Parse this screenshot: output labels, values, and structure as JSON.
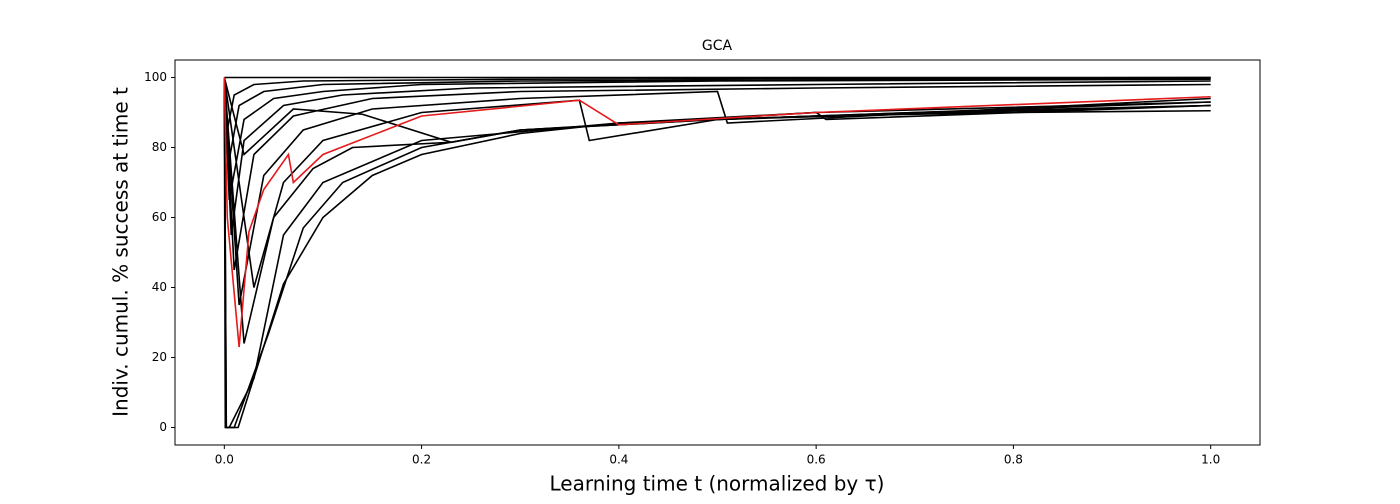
{
  "chart_data": {
    "type": "line",
    "title": "GCA",
    "x_label": "Learning time t (normalized by  τ)",
    "y_label": "Indiv. cumul. % success at time t",
    "xlim": [
      -0.05,
      1.05
    ],
    "ylim": [
      -5,
      105
    ],
    "xticks": [
      {
        "value": 0,
        "label": "0.0"
      },
      0.2,
      0.4,
      0.6,
      0.8,
      {
        "value": 1,
        "label": "1.0"
      }
    ],
    "yticks": [
      0,
      20,
      40,
      60,
      80,
      100
    ],
    "series": [
      {
        "color": "#000000",
        "x": [
          0,
          0.002,
          0.014,
          0.06,
          0.1,
          0.15,
          0.2,
          0.3,
          0.4,
          0.6,
          0.8,
          1.0
        ],
        "values": [
          100,
          0,
          0,
          41,
          60,
          72,
          78,
          84,
          87,
          89,
          90,
          90.5
        ]
      },
      {
        "color": "#000000",
        "x": [
          0,
          0.002,
          0.01,
          0.045,
          0.08,
          0.12,
          0.2,
          0.3,
          0.5,
          0.7,
          1.0
        ],
        "values": [
          100,
          0,
          0,
          27,
          57,
          70,
          80,
          85,
          88,
          90,
          92
        ]
      },
      {
        "color": "#000000",
        "x": [
          0,
          0.001,
          0.005,
          0.03,
          0.06,
          0.1,
          0.2,
          0.4,
          0.6,
          1.0
        ],
        "values": [
          100,
          0,
          0,
          14,
          55,
          70,
          82,
          87,
          90,
          93
        ]
      },
      {
        "color": "#000000",
        "x": [
          0,
          0.02,
          0.05,
          0.09,
          0.13,
          0.23,
          0.3,
          0.5,
          1.0
        ],
        "values": [
          100,
          24,
          60,
          74,
          80,
          81.5,
          85,
          88,
          92
        ]
      },
      {
        "color": "#000000",
        "x": [
          0,
          0.03,
          0.06,
          0.1,
          0.2,
          0.36,
          0.37,
          0.5,
          1.0
        ],
        "values": [
          100,
          40,
          70,
          82,
          90,
          93.5,
          82,
          88,
          93
        ]
      },
      {
        "color": "#000000",
        "x": [
          0,
          0.015,
          0.04,
          0.08,
          0.15,
          0.3,
          0.5,
          0.51,
          1.0
        ],
        "values": [
          100,
          35,
          72,
          85,
          91,
          94,
          96,
          87,
          94
        ]
      },
      {
        "color": "#000000",
        "x": [
          0,
          0.01,
          0.03,
          0.07,
          0.15,
          0.3,
          0.6,
          1.0
        ],
        "values": [
          100,
          45,
          78,
          89,
          94,
          96,
          97,
          98
        ]
      },
      {
        "color": "#000000",
        "x": [
          0,
          0.007,
          0.02,
          0.06,
          0.12,
          0.25,
          0.6,
          1.0
        ],
        "values": [
          100,
          55,
          82,
          92,
          95,
          97,
          98,
          99
        ]
      },
      {
        "color": "#000000",
        "x": [
          0,
          0.005,
          0.02,
          0.05,
          0.1,
          0.2,
          0.5,
          1.0
        ],
        "values": [
          100,
          65,
          88,
          94,
          96,
          98,
          99,
          99.5
        ]
      },
      {
        "color": "#000000",
        "x": [
          0,
          0.004,
          0.015,
          0.04,
          0.1,
          0.3,
          1.0
        ],
        "values": [
          100,
          75,
          92,
          96,
          98,
          99,
          99.8
        ]
      },
      {
        "color": "#000000",
        "x": [
          0,
          0.003,
          0.01,
          0.03,
          0.08,
          0.3,
          1.0
        ],
        "values": [
          100,
          85,
          95,
          98,
          99,
          99.5,
          100
        ]
      },
      {
        "color": "#000000",
        "x": [
          0,
          1.0
        ],
        "values": [
          100,
          100
        ]
      },
      {
        "color": "#000000",
        "x": [
          0,
          0.02,
          0.07,
          0.14,
          0.23,
          0.3,
          0.6,
          0.61,
          1.0
        ],
        "values": [
          100,
          78,
          91,
          89.5,
          81.5,
          85,
          90,
          88,
          92
        ]
      },
      {
        "color": "#e41a1c",
        "x": [
          0,
          0.003,
          0.015,
          0.025,
          0.04,
          0.065,
          0.07,
          0.1,
          0.2,
          0.36,
          0.4,
          0.6,
          1.0
        ],
        "values": [
          100,
          60,
          23,
          56,
          68,
          78,
          70,
          78,
          89,
          93.5,
          86.5,
          90,
          94.5
        ]
      }
    ]
  }
}
